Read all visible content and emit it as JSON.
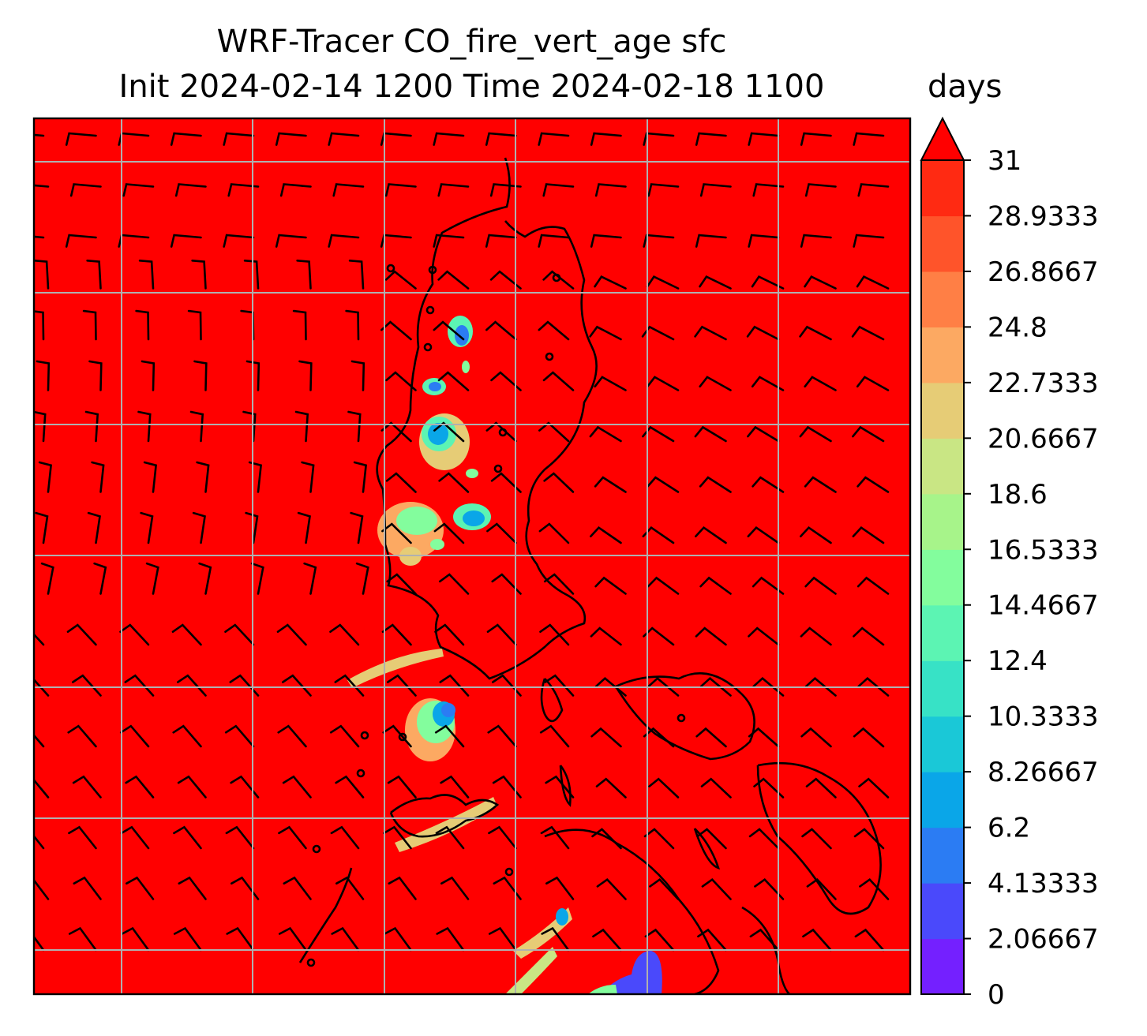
{
  "title": {
    "line1": "WRF-Tracer CO_fire_vert_age sfc",
    "line2": "Init 2024-02-14 1200 Time 2024-02-18 1100"
  },
  "colorbar": {
    "label": "days",
    "ticks": [
      "0",
      "2.06667",
      "4.13333",
      "6.2",
      "8.26667",
      "10.3333",
      "12.4",
      "14.4667",
      "16.5333",
      "18.6",
      "20.6667",
      "22.7333",
      "24.8",
      "26.8667",
      "28.9333",
      "31"
    ],
    "colors": [
      "#7420ff",
      "#4a49fb",
      "#2b7cf3",
      "#0aa6e8",
      "#1ac8d7",
      "#37e2c6",
      "#5cf4b3",
      "#83fd9d",
      "#a7f48a",
      "#c9e684",
      "#e6cc76",
      "#fca962",
      "#ff7f45",
      "#ff542a",
      "#ff2a12"
    ],
    "extend": "max",
    "extend_color": "#ff0000"
  },
  "chart_data": {
    "type": "heatmap",
    "field": "CO_fire_vert_age sfc",
    "units": "days",
    "vmin": 0,
    "vmax": 31,
    "levels": [
      0,
      2.06667,
      4.13333,
      6.2,
      8.26667,
      10.3333,
      12.4,
      14.4667,
      16.5333,
      18.6,
      20.6667,
      22.7333,
      24.8,
      26.8667,
      28.9333,
      31
    ],
    "background_value": 31,
    "grid": true,
    "overlays": [
      "wind barbs",
      "coastlines",
      "gridlines"
    ]
  }
}
